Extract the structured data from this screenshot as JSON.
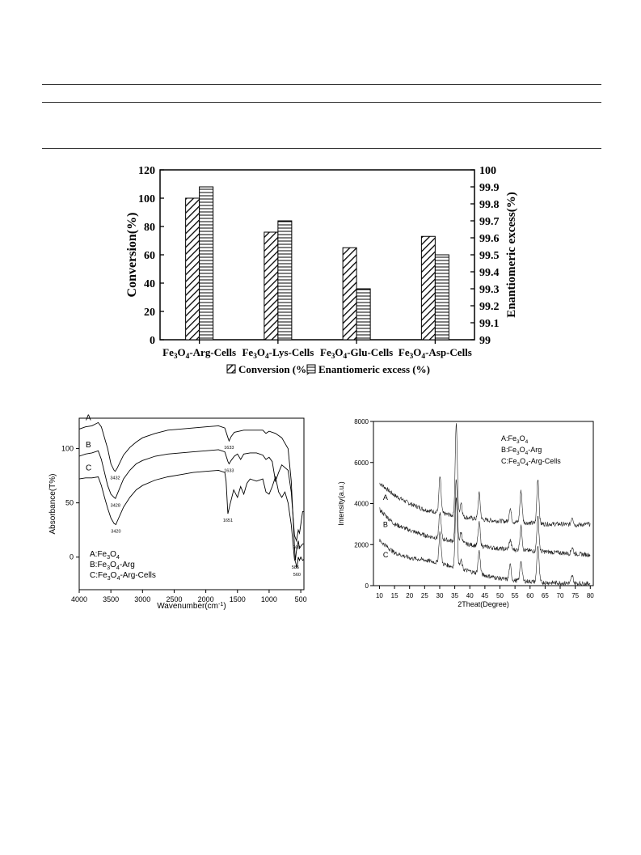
{
  "chart_data": [
    {
      "type": "bar",
      "categories": [
        "Fe₃O₄-Arg-Cells",
        "Fe₃O₄-Lys-Cells",
        "Fe₃O₄-Glu-Cells",
        "Fe₃O₄-Asp-Cells"
      ],
      "series": [
        {
          "name": "Conversion (%)",
          "axis": "left",
          "values": [
            100,
            76,
            65,
            73
          ],
          "pattern": "diagonal"
        },
        {
          "name": "Enantiomeric excess (%)",
          "axis": "right",
          "values": [
            99.9,
            99.7,
            99.3,
            99.5
          ],
          "pattern": "horizontal"
        }
      ],
      "ylabel": "Conversion(%)",
      "y2label": "Enantiomeric excess(%)",
      "ylim": [
        0,
        120
      ],
      "y2lim": [
        99,
        100
      ],
      "yticks": [
        "0",
        "20",
        "40",
        "60",
        "80",
        "100",
        "120"
      ],
      "y2ticks": [
        "99",
        "99.1",
        "99.2",
        "99.3",
        "99.4",
        "99.5",
        "99.6",
        "99.7",
        "99.8",
        "99.9",
        "100"
      ],
      "legend_position": "bottom"
    },
    {
      "type": "line",
      "xlabel": "Wavenumber(cm⁻¹)",
      "ylabel": "Absorbance(T%)",
      "xlim": [
        4000,
        450
      ],
      "ylim": [
        -30,
        128
      ],
      "xticks": [
        "4000",
        "3500",
        "3000",
        "2500",
        "2000",
        "1500",
        "1000",
        "500"
      ],
      "yticks": [
        "0",
        "50",
        "100"
      ],
      "curve_letters": [
        "A",
        "B",
        "C"
      ],
      "legend": [
        "A:Fe₃O₄",
        "B:Fe₃O₄-Arg",
        "C:Fe₃O₄-Arg-Cells"
      ],
      "series": [
        {
          "name": "A:Fe₃O₄",
          "points": [
            [
              4000,
              118
            ],
            [
              3900,
              120
            ],
            [
              3800,
              121
            ],
            [
              3700,
              124
            ],
            [
              3650,
              120
            ],
            [
              3600,
              110
            ],
            [
              3550,
              100
            ],
            [
              3500,
              86
            ],
            [
              3450,
              80
            ],
            [
              3432,
              79
            ],
            [
              3400,
              82
            ],
            [
              3300,
              94
            ],
            [
              3200,
              101
            ],
            [
              3100,
              106
            ],
            [
              3000,
              110
            ],
            [
              2800,
              114
            ],
            [
              2600,
              117
            ],
            [
              2400,
              118
            ],
            [
              2200,
              119
            ],
            [
              2000,
              120
            ],
            [
              1800,
              121
            ],
            [
              1700,
              119
            ],
            [
              1650,
              110
            ],
            [
              1633,
              107
            ],
            [
              1600,
              111
            ],
            [
              1550,
              115
            ],
            [
              1400,
              117
            ],
            [
              1200,
              117
            ],
            [
              1100,
              117
            ],
            [
              1050,
              114
            ],
            [
              1000,
              116
            ],
            [
              900,
              114
            ],
            [
              800,
              110
            ],
            [
              700,
              100
            ],
            [
              650,
              70
            ],
            [
              600,
              10
            ],
            [
              585,
              -3
            ],
            [
              570,
              5
            ],
            [
              540,
              15
            ],
            [
              520,
              8
            ],
            [
              500,
              10
            ],
            [
              470,
              12
            ],
            [
              450,
              12
            ]
          ]
        },
        {
          "name": "B:Fe₃O₄-Arg",
          "points": [
            [
              4000,
              93
            ],
            [
              3900,
              95
            ],
            [
              3800,
              96
            ],
            [
              3700,
              98
            ],
            [
              3650,
              90
            ],
            [
              3600,
              78
            ],
            [
              3550,
              66
            ],
            [
              3500,
              58
            ],
            [
              3450,
              55
            ],
            [
              3428,
              54
            ],
            [
              3400,
              58
            ],
            [
              3300,
              72
            ],
            [
              3200,
              80
            ],
            [
              3100,
              86
            ],
            [
              3000,
              89
            ],
            [
              2800,
              93
            ],
            [
              2600,
              95
            ],
            [
              2400,
              96
            ],
            [
              2200,
              97
            ],
            [
              2000,
              98
            ],
            [
              1800,
              99
            ],
            [
              1700,
              97
            ],
            [
              1650,
              88
            ],
            [
              1633,
              86
            ],
            [
              1600,
              89
            ],
            [
              1550,
              93
            ],
            [
              1500,
              95
            ],
            [
              1450,
              90
            ],
            [
              1400,
              95
            ],
            [
              1300,
              96
            ],
            [
              1200,
              96
            ],
            [
              1100,
              94
            ],
            [
              1050,
              90
            ],
            [
              1000,
              92
            ],
            [
              950,
              88
            ],
            [
              900,
              70
            ],
            [
              850,
              78
            ],
            [
              800,
              85
            ],
            [
              700,
              80
            ],
            [
              650,
              60
            ],
            [
              600,
              20
            ],
            [
              568,
              15
            ],
            [
              540,
              25
            ],
            [
              520,
              22
            ],
            [
              500,
              30
            ],
            [
              470,
              42
            ],
            [
              450,
              42
            ]
          ]
        },
        {
          "name": "C:Fe₃O₄-Arg-Cells",
          "points": [
            [
              4000,
              72
            ],
            [
              3900,
              73
            ],
            [
              3800,
              73
            ],
            [
              3700,
              74
            ],
            [
              3650,
              66
            ],
            [
              3600,
              55
            ],
            [
              3550,
              45
            ],
            [
              3500,
              36
            ],
            [
              3450,
              31
            ],
            [
              3420,
              30
            ],
            [
              3400,
              33
            ],
            [
              3300,
              46
            ],
            [
              3200,
              55
            ],
            [
              3100,
              62
            ],
            [
              3000,
              66
            ],
            [
              2800,
              71
            ],
            [
              2600,
              74
            ],
            [
              2400,
              76
            ],
            [
              2200,
              78
            ],
            [
              2000,
              79
            ],
            [
              1800,
              80
            ],
            [
              1700,
              78
            ],
            [
              1680,
              70
            ],
            [
              1651,
              40
            ],
            [
              1620,
              48
            ],
            [
              1560,
              62
            ],
            [
              1500,
              55
            ],
            [
              1450,
              65
            ],
            [
              1400,
              58
            ],
            [
              1350,
              68
            ],
            [
              1300,
              72
            ],
            [
              1200,
              70
            ],
            [
              1100,
              72
            ],
            [
              1050,
              60
            ],
            [
              1000,
              58
            ],
            [
              950,
              65
            ],
            [
              900,
              74
            ],
            [
              850,
              60
            ],
            [
              800,
              55
            ],
            [
              750,
              60
            ],
            [
              700,
              50
            ],
            [
              650,
              30
            ],
            [
              600,
              -2
            ],
            [
              580,
              -5
            ],
            [
              560,
              -10
            ],
            [
              540,
              0
            ],
            [
              520,
              -3
            ],
            [
              500,
              0
            ],
            [
              470,
              -3
            ],
            [
              450,
              -2
            ]
          ]
        }
      ],
      "annotations": [
        {
          "text": "1633",
          "x": 1633,
          "y": 107
        },
        {
          "text": "3432",
          "x": 3432,
          "y": 79
        },
        {
          "text": "1633",
          "x": 1633,
          "y": 86
        },
        {
          "text": "3428",
          "x": 3428,
          "y": 54
        },
        {
          "text": "568",
          "x": 568,
          "y": 15
        },
        {
          "text": "3420",
          "x": 3420,
          "y": 30
        },
        {
          "text": "1651",
          "x": 1651,
          "y": 40
        },
        {
          "text": "560",
          "x": 560,
          "y": -10
        },
        {
          "text": "585",
          "x": 585,
          "y": -3
        }
      ]
    },
    {
      "type": "line",
      "xlabel": "2Theat(Degree)",
      "ylabel": "Intensity(a.u.)",
      "xlim": [
        8,
        81
      ],
      "ylim": [
        0,
        8000
      ],
      "xticks": [
        "10",
        "15",
        "20",
        "25",
        "30",
        "35",
        "40",
        "45",
        "50",
        "55",
        "60",
        "65",
        "70",
        "75",
        "80"
      ],
      "yticks": [
        "0",
        "2000",
        "4000",
        "6000",
        "8000"
      ],
      "curve_letters": [
        "A",
        "B",
        "C"
      ],
      "legend": [
        "A:Fe₃O₄",
        "B:Fe₃O₄-Arg",
        "C:Fe₃O₄-Arg-Cells"
      ],
      "series": [
        {
          "name": "A:Fe₃O₄",
          "baseline": [
            [
              10,
              5000
            ],
            [
              15,
              4400
            ],
            [
              20,
              4000
            ],
            [
              25,
              3700
            ],
            [
              30,
              3550
            ],
            [
              35,
              3400
            ],
            [
              40,
              3300
            ],
            [
              45,
              3200
            ],
            [
              50,
              3150
            ],
            [
              55,
              3100
            ],
            [
              60,
              3050
            ],
            [
              65,
              3000
            ],
            [
              70,
              3000
            ],
            [
              75,
              2950
            ],
            [
              80,
              3000
            ]
          ],
          "peaks": [
            [
              30.1,
              1750
            ],
            [
              35.5,
              4500
            ],
            [
              37.1,
              700
            ],
            [
              43.1,
              1250
            ],
            [
              53.4,
              650
            ],
            [
              57.0,
              1550
            ],
            [
              62.6,
              2200
            ],
            [
              74.0,
              400
            ]
          ]
        },
        {
          "name": "B:Fe₃O₄-Arg",
          "baseline": [
            [
              10,
              3700
            ],
            [
              15,
              3000
            ],
            [
              20,
              2700
            ],
            [
              25,
              2450
            ],
            [
              30,
              2300
            ],
            [
              35,
              2150
            ],
            [
              40,
              2000
            ],
            [
              45,
              1900
            ],
            [
              50,
              1800
            ],
            [
              55,
              1750
            ],
            [
              60,
              1700
            ],
            [
              65,
              1650
            ],
            [
              70,
              1600
            ],
            [
              75,
              1550
            ],
            [
              80,
              1500
            ]
          ],
          "peaks": [
            [
              30.1,
              1250
            ],
            [
              35.5,
              3100
            ],
            [
              37.1,
              500
            ],
            [
              43.1,
              1100
            ],
            [
              53.4,
              450
            ],
            [
              57.0,
              1150
            ],
            [
              62.6,
              1650
            ],
            [
              74.0,
              300
            ]
          ]
        },
        {
          "name": "C:Fe₃O₄-Arg-Cells",
          "baseline": [
            [
              10,
              2200
            ],
            [
              15,
              1600
            ],
            [
              20,
              1350
            ],
            [
              25,
              1250
            ],
            [
              30,
              1100
            ],
            [
              35,
              900
            ],
            [
              40,
              700
            ],
            [
              45,
              500
            ],
            [
              50,
              350
            ],
            [
              55,
              250
            ],
            [
              60,
              200
            ],
            [
              65,
              150
            ],
            [
              70,
              130
            ],
            [
              75,
              110
            ],
            [
              80,
              100
            ]
          ],
          "peaks": [
            [
              30.1,
              1500
            ],
            [
              35.5,
              3500
            ],
            [
              37.1,
              400
            ],
            [
              43.1,
              1100
            ],
            [
              53.4,
              700
            ],
            [
              57.0,
              1000
            ],
            [
              62.6,
              1800
            ],
            [
              74.0,
              350
            ]
          ]
        }
      ]
    }
  ]
}
